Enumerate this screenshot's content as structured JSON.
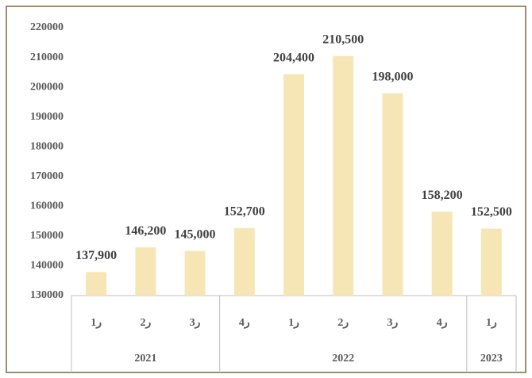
{
  "chart_data": {
    "type": "bar",
    "groups": [
      {
        "name": "2021",
        "categories": [
          "ر1",
          "ر2",
          "ر3"
        ],
        "values": [
          137900,
          146200,
          145000
        ],
        "value_labels": [
          "137,900",
          "146,200",
          "145,000"
        ]
      },
      {
        "name": "2022",
        "categories": [
          "ر4",
          "ر1",
          "ر2",
          "ر3",
          "ر4"
        ],
        "values": [
          152700,
          204400,
          210500,
          198000,
          158200
        ],
        "value_labels": [
          "152,700",
          "204,400",
          "210,500",
          "198,000",
          "158,200"
        ]
      },
      {
        "name": "2023",
        "categories": [
          "ر1"
        ],
        "values": [
          152500
        ],
        "value_labels": [
          "152,500"
        ]
      }
    ],
    "color": "#f7e6b5",
    "ylim": [
      130000,
      220000
    ],
    "yticks": [
      130000,
      140000,
      150000,
      160000,
      170000,
      180000,
      190000,
      200000,
      210000,
      220000
    ],
    "grid": false
  }
}
